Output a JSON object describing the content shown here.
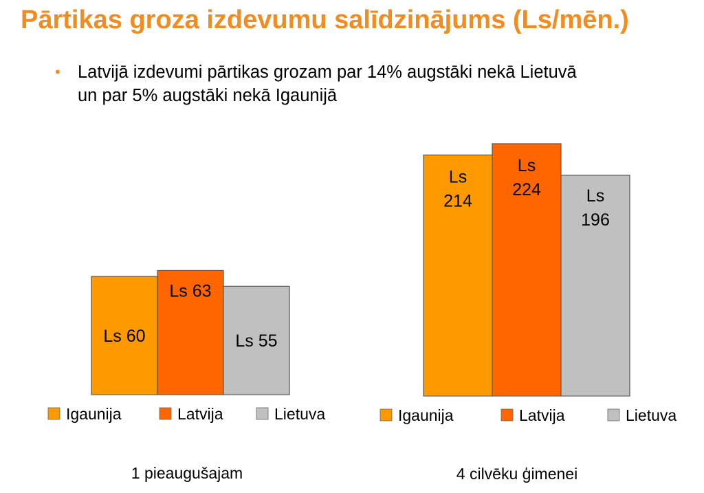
{
  "title": "Pārtikas groza izdevumu salīdzinājums (Ls/mēn.)",
  "bullet": {
    "symbol": "•",
    "line1": "Latvijā izdevumi pārtikas grozam par 14% augstāki nekā Lietuvā",
    "line2": "un par 5% augstāki nekā Igaunijā"
  },
  "colors": {
    "accent": "#F28C1E",
    "Igaunija": "#FF9900",
    "Latvija": "#FF6600",
    "Lietuva": "#C0C0C0"
  },
  "chart_data": [
    {
      "type": "bar",
      "caption": "1 pieaugušajam",
      "categories": [
        "Igaunija",
        "Latvija",
        "Lietuva"
      ],
      "values": [
        60,
        63,
        55
      ],
      "labels": [
        [
          "Ls 60"
        ],
        [
          "Ls 63"
        ],
        [
          "Ls 55"
        ]
      ],
      "legend": [
        "Igaunija",
        "Latvija",
        "Lietuva"
      ],
      "unit": "Ls/mēn.",
      "grid": false,
      "legend_position": "bottom"
    },
    {
      "type": "bar",
      "caption": "4 cilvēku ģimenei",
      "categories": [
        "Igaunija",
        "Latvija",
        "Lietuva"
      ],
      "values": [
        214,
        224,
        196
      ],
      "labels": [
        [
          "Ls",
          "214"
        ],
        [
          "Ls",
          "224"
        ],
        [
          "Ls",
          "196"
        ]
      ],
      "legend": [
        "Igaunija",
        "Latvija",
        "Lietuva"
      ],
      "unit": "Ls/mēn.",
      "grid": false,
      "legend_position": "bottom"
    }
  ]
}
